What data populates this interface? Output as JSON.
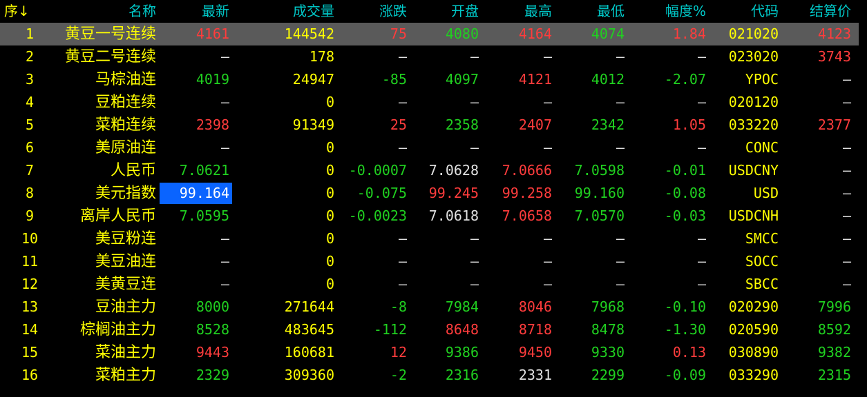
{
  "header": {
    "columns": [
      "序↓",
      "名称",
      "最新",
      "成交量",
      "涨跌",
      "开盘",
      "最高",
      "最低",
      "幅度%",
      "代码",
      "结算价"
    ]
  },
  "colors": {
    "up": "#ff3c3c",
    "down": "#20d020",
    "text": "#ffff00",
    "neutral": "#e0e0e0",
    "header": "#00c8c8",
    "selected_row": "#5a5a5a",
    "focus_cell": "#0a64ff"
  },
  "selected_row": 1,
  "focused_cell": {
    "row": 8,
    "column": "最新"
  },
  "rows": [
    {
      "idx": "1",
      "name": "黄豆一号连续",
      "cells": [
        [
          "4161",
          "r"
        ],
        [
          "144542",
          "y"
        ],
        [
          "75",
          "r"
        ],
        [
          "4080",
          "g"
        ],
        [
          "4164",
          "r"
        ],
        [
          "4074",
          "g"
        ],
        [
          "1.84",
          "r"
        ],
        [
          "021020",
          "y"
        ],
        [
          "4123",
          "r"
        ]
      ]
    },
    {
      "idx": "2",
      "name": "黄豆二号连续",
      "cells": [
        [
          "—",
          "w"
        ],
        [
          "178",
          "y"
        ],
        [
          "—",
          "w"
        ],
        [
          "—",
          "w"
        ],
        [
          "—",
          "w"
        ],
        [
          "—",
          "w"
        ],
        [
          "—",
          "w"
        ],
        [
          "023020",
          "y"
        ],
        [
          "3743",
          "r"
        ]
      ]
    },
    {
      "idx": "3",
      "name": "马棕油连",
      "cells": [
        [
          "4019",
          "g"
        ],
        [
          "24947",
          "y"
        ],
        [
          "-85",
          "g"
        ],
        [
          "4097",
          "g"
        ],
        [
          "4121",
          "r"
        ],
        [
          "4012",
          "g"
        ],
        [
          "-2.07",
          "g"
        ],
        [
          "YPOC",
          "y"
        ],
        [
          "—",
          "w"
        ]
      ]
    },
    {
      "idx": "4",
      "name": "豆粕连续",
      "cells": [
        [
          "—",
          "w"
        ],
        [
          "0",
          "y"
        ],
        [
          "—",
          "w"
        ],
        [
          "—",
          "w"
        ],
        [
          "—",
          "w"
        ],
        [
          "—",
          "w"
        ],
        [
          "—",
          "w"
        ],
        [
          "020120",
          "y"
        ],
        [
          "—",
          "w"
        ]
      ]
    },
    {
      "idx": "5",
      "name": "菜粕连续",
      "cells": [
        [
          "2398",
          "r"
        ],
        [
          "91349",
          "y"
        ],
        [
          "25",
          "r"
        ],
        [
          "2358",
          "g"
        ],
        [
          "2407",
          "r"
        ],
        [
          "2342",
          "g"
        ],
        [
          "1.05",
          "r"
        ],
        [
          "033220",
          "y"
        ],
        [
          "2377",
          "r"
        ]
      ]
    },
    {
      "idx": "6",
      "name": "美原油连",
      "cells": [
        [
          "—",
          "w"
        ],
        [
          "0",
          "y"
        ],
        [
          "—",
          "w"
        ],
        [
          "—",
          "w"
        ],
        [
          "—",
          "w"
        ],
        [
          "—",
          "w"
        ],
        [
          "—",
          "w"
        ],
        [
          "CONC",
          "y"
        ],
        [
          "—",
          "w"
        ]
      ]
    },
    {
      "idx": "7",
      "name": "人民币",
      "cells": [
        [
          "7.0621",
          "g"
        ],
        [
          "0",
          "y"
        ],
        [
          "-0.0007",
          "g"
        ],
        [
          "7.0628",
          "w"
        ],
        [
          "7.0666",
          "r"
        ],
        [
          "7.0598",
          "g"
        ],
        [
          "-0.01",
          "g"
        ],
        [
          "USDCNY",
          "y"
        ],
        [
          "—",
          "w"
        ]
      ]
    },
    {
      "idx": "8",
      "name": "美元指数",
      "cells": [
        [
          "99.164",
          "hl"
        ],
        [
          "0",
          "y"
        ],
        [
          "-0.075",
          "g"
        ],
        [
          "99.245",
          "r"
        ],
        [
          "99.258",
          "r"
        ],
        [
          "99.160",
          "g"
        ],
        [
          "-0.08",
          "g"
        ],
        [
          "USD",
          "y"
        ],
        [
          "—",
          "w"
        ]
      ]
    },
    {
      "idx": "9",
      "name": "离岸人民币",
      "cells": [
        [
          "7.0595",
          "g"
        ],
        [
          "0",
          "y"
        ],
        [
          "-0.0023",
          "g"
        ],
        [
          "7.0618",
          "w"
        ],
        [
          "7.0658",
          "r"
        ],
        [
          "7.0570",
          "g"
        ],
        [
          "-0.03",
          "g"
        ],
        [
          "USDCNH",
          "y"
        ],
        [
          "—",
          "w"
        ]
      ]
    },
    {
      "idx": "10",
      "name": "美豆粉连",
      "cells": [
        [
          "—",
          "w"
        ],
        [
          "0",
          "y"
        ],
        [
          "—",
          "w"
        ],
        [
          "—",
          "w"
        ],
        [
          "—",
          "w"
        ],
        [
          "—",
          "w"
        ],
        [
          "—",
          "w"
        ],
        [
          "SMCC",
          "y"
        ],
        [
          "—",
          "w"
        ]
      ]
    },
    {
      "idx": "11",
      "name": "美豆油连",
      "cells": [
        [
          "—",
          "w"
        ],
        [
          "0",
          "y"
        ],
        [
          "—",
          "w"
        ],
        [
          "—",
          "w"
        ],
        [
          "—",
          "w"
        ],
        [
          "—",
          "w"
        ],
        [
          "—",
          "w"
        ],
        [
          "SOCC",
          "y"
        ],
        [
          "—",
          "w"
        ]
      ]
    },
    {
      "idx": "12",
      "name": "美黄豆连",
      "cells": [
        [
          "—",
          "w"
        ],
        [
          "0",
          "y"
        ],
        [
          "—",
          "w"
        ],
        [
          "—",
          "w"
        ],
        [
          "—",
          "w"
        ],
        [
          "—",
          "w"
        ],
        [
          "—",
          "w"
        ],
        [
          "SBCC",
          "y"
        ],
        [
          "—",
          "w"
        ]
      ]
    },
    {
      "idx": "13",
      "name": "豆油主力",
      "cells": [
        [
          "8000",
          "g"
        ],
        [
          "271644",
          "y"
        ],
        [
          "-8",
          "g"
        ],
        [
          "7984",
          "g"
        ],
        [
          "8046",
          "r"
        ],
        [
          "7968",
          "g"
        ],
        [
          "-0.10",
          "g"
        ],
        [
          "020290",
          "y"
        ],
        [
          "7996",
          "g"
        ]
      ]
    },
    {
      "idx": "14",
      "name": "棕榈油主力",
      "cells": [
        [
          "8528",
          "g"
        ],
        [
          "483645",
          "y"
        ],
        [
          "-112",
          "g"
        ],
        [
          "8648",
          "r"
        ],
        [
          "8718",
          "r"
        ],
        [
          "8478",
          "g"
        ],
        [
          "-1.30",
          "g"
        ],
        [
          "020590",
          "y"
        ],
        [
          "8592",
          "g"
        ]
      ]
    },
    {
      "idx": "15",
      "name": "菜油主力",
      "cells": [
        [
          "9443",
          "r"
        ],
        [
          "160681",
          "y"
        ],
        [
          "12",
          "r"
        ],
        [
          "9386",
          "g"
        ],
        [
          "9450",
          "r"
        ],
        [
          "9330",
          "g"
        ],
        [
          "0.13",
          "r"
        ],
        [
          "030890",
          "y"
        ],
        [
          "9382",
          "g"
        ]
      ]
    },
    {
      "idx": "16",
      "name": "菜粕主力",
      "cells": [
        [
          "2329",
          "g"
        ],
        [
          "309360",
          "y"
        ],
        [
          "-2",
          "g"
        ],
        [
          "2316",
          "g"
        ],
        [
          "2331",
          "w"
        ],
        [
          "2299",
          "g"
        ],
        [
          "-0.09",
          "g"
        ],
        [
          "033290",
          "y"
        ],
        [
          "2315",
          "g"
        ]
      ]
    }
  ]
}
